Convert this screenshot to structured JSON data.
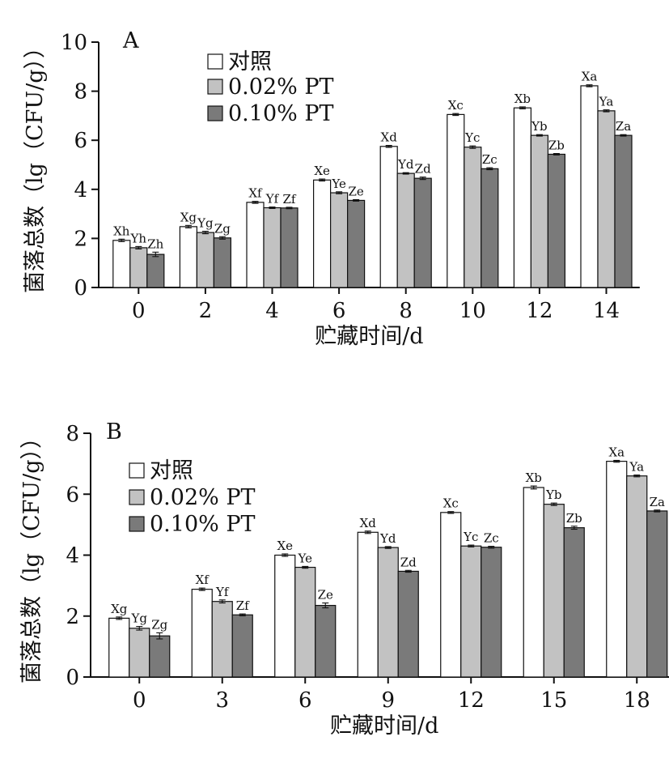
{
  "colors": {
    "control": "#ffffff",
    "pt002": "#c2c2c2",
    "pt010": "#7a7a7a",
    "axis": "#111111"
  },
  "chart_data": [
    {
      "type": "bar",
      "panel_label": "A",
      "xlabel": "贮藏时间/d",
      "ylabel": "菌落总数（lg（CFU/g））",
      "ylim": [
        0,
        10
      ],
      "yticks": [
        0,
        2,
        4,
        6,
        8,
        10
      ],
      "legend_position": "top-left",
      "categories": [
        "0",
        "2",
        "4",
        "6",
        "8",
        "10",
        "12",
        "14"
      ],
      "series": [
        {
          "name": "对照",
          "values": [
            1.92,
            2.48,
            3.47,
            4.38,
            5.75,
            7.05,
            7.32,
            8.22
          ],
          "errors": [
            0.05,
            0.05,
            0.04,
            0.04,
            0.04,
            0.04,
            0.04,
            0.04
          ],
          "letters": [
            "Xh",
            "Xg",
            "Xf",
            "Xe",
            "Xd",
            "Xc",
            "Xb",
            "Xa"
          ]
        },
        {
          "name": "0.02% PT",
          "values": [
            1.62,
            2.24,
            3.25,
            3.86,
            4.65,
            5.72,
            6.2,
            7.2
          ],
          "errors": [
            0.05,
            0.05,
            0.03,
            0.04,
            0.03,
            0.05,
            0.03,
            0.04
          ],
          "letters": [
            "Yh",
            "Yg",
            "Yf",
            "Ye",
            "Yd",
            "Yc",
            "Yb",
            "Ya"
          ]
        },
        {
          "name": "0.10% PT",
          "values": [
            1.35,
            2.02,
            3.24,
            3.55,
            4.45,
            4.84,
            5.43,
            6.2
          ],
          "errors": [
            0.09,
            0.05,
            0.03,
            0.03,
            0.05,
            0.04,
            0.03,
            0.03
          ],
          "letters": [
            "Zh",
            "Zg",
            "Zf",
            "Ze",
            "Zd",
            "Zc",
            "Zb",
            "Za"
          ]
        }
      ]
    },
    {
      "type": "bar",
      "panel_label": "B",
      "xlabel": "贮藏时间/d",
      "ylabel": "菌落总数（lg（CFU/g））",
      "ylim": [
        0,
        8
      ],
      "yticks": [
        0,
        2,
        4,
        6,
        8
      ],
      "legend_position": "top-left",
      "categories": [
        "0",
        "3",
        "6",
        "9",
        "12",
        "15",
        "18"
      ],
      "series": [
        {
          "name": "对照",
          "values": [
            1.93,
            2.88,
            4.0,
            4.75,
            5.4,
            6.22,
            7.08
          ],
          "errors": [
            0.04,
            0.04,
            0.04,
            0.04,
            0.03,
            0.05,
            0.03
          ],
          "letters": [
            "Xg",
            "Xf",
            "Xe",
            "Xd",
            "Xc",
            "Xb",
            "Xa"
          ]
        },
        {
          "name": "0.02% PT",
          "values": [
            1.6,
            2.48,
            3.6,
            4.25,
            4.3,
            5.67,
            6.6
          ],
          "errors": [
            0.06,
            0.05,
            0.03,
            0.03,
            0.03,
            0.04,
            0.03
          ],
          "letters": [
            "Yg",
            "Yf",
            "Ye",
            "Yd",
            "Yc",
            "Yb",
            "Ya"
          ]
        },
        {
          "name": "0.10% PT",
          "values": [
            1.35,
            2.04,
            2.35,
            3.47,
            4.26,
            4.9,
            5.45
          ],
          "errors": [
            0.1,
            0.03,
            0.08,
            0.03,
            0.03,
            0.05,
            0.03
          ],
          "letters": [
            "Zg",
            "Zf",
            "Ze",
            "Zd",
            "Zc",
            "Zb",
            "Za"
          ]
        }
      ]
    }
  ]
}
